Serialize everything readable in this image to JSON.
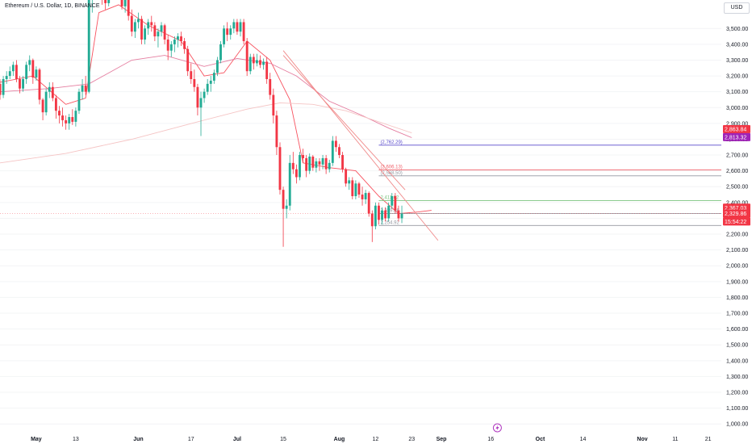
{
  "header": {
    "title": "Ethereum / U.S. Dollar, 1D, BINANCE",
    "currency_button": "USD"
  },
  "colors": {
    "up": "#22ab94",
    "down": "#f23645",
    "sma_fast": "#f7525f",
    "sma_mid": "#e57ea0",
    "sma_slow": "#f5c4c4",
    "trend": "#f08a8a",
    "level_purple": "#5b4ccc",
    "level_red": "#f0606a",
    "level_green": "#7bc47f",
    "level_gray": "#9598a1",
    "axis_text": "#131722",
    "badge_purple": "#a023b7"
  },
  "chart_data": {
    "type": "candlestick",
    "symbol": "Ethereum / U.S. Dollar",
    "interval": "1D",
    "exchange": "BINANCE",
    "y_axis": {
      "range": [
        950,
        3680
      ],
      "ticks": [
        1000,
        1100,
        1200,
        1300,
        1400,
        1500,
        1600,
        1700,
        1800,
        1900,
        2000,
        2100,
        2200,
        2300,
        2400,
        2500,
        2600,
        2700,
        2800,
        2900,
        3000,
        3100,
        3200,
        3300,
        3400,
        3500
      ],
      "tick_labels": [
        "1,000.00",
        "1,100.00",
        "1,200.00",
        "1,300.00",
        "1,400.00",
        "1,500.00",
        "1,600.00",
        "1,700.00",
        "1,800.00",
        "1,900.00",
        "2,000.00",
        "2,100.00",
        "2,200.00",
        "2,300.00",
        "2,400.00",
        "2,500.00",
        "2,600.00",
        "2,700.00",
        "2,800.00",
        "2,900.00",
        "3,000.00",
        "3,100.00",
        "3,200.00",
        "3,300.00",
        "3,400.00",
        "3,500.00"
      ]
    },
    "x_axis": {
      "range": [
        "2024-04-20",
        "2024-11-25"
      ],
      "tick_labels": [
        {
          "date": "2024-05-01",
          "label": "May",
          "major": true
        },
        {
          "date": "2024-05-13",
          "label": "13",
          "major": false
        },
        {
          "date": "2024-06-01",
          "label": "Jun",
          "major": true
        },
        {
          "date": "2024-06-17",
          "label": "17",
          "major": false
        },
        {
          "date": "2024-07-01",
          "label": "Jul",
          "major": true
        },
        {
          "date": "2024-07-15",
          "label": "15",
          "major": false
        },
        {
          "date": "2024-08-01",
          "label": "Aug",
          "major": true
        },
        {
          "date": "2024-08-12",
          "label": "12",
          "major": false
        },
        {
          "date": "2024-08-23",
          "label": "23",
          "major": false
        },
        {
          "date": "2024-09-01",
          "label": "Sep",
          "major": true
        },
        {
          "date": "2024-09-16",
          "label": "16",
          "major": false
        },
        {
          "date": "2024-10-01",
          "label": "Oct",
          "major": true
        },
        {
          "date": "2024-10-14",
          "label": "14",
          "major": false
        },
        {
          "date": "2024-11-01",
          "label": "Nov",
          "major": true
        },
        {
          "date": "2024-11-11",
          "label": "11",
          "major": false
        },
        {
          "date": "2024-11-21",
          "label": "21",
          "major": false
        }
      ]
    },
    "first_date": "2024-04-20",
    "candles": [
      [
        3150,
        3180,
        3050,
        3080
      ],
      [
        3080,
        3200,
        3060,
        3180
      ],
      [
        3180,
        3230,
        3150,
        3200
      ],
      [
        3200,
        3260,
        3180,
        3230
      ],
      [
        3230,
        3290,
        3200,
        3270
      ],
      [
        3270,
        3300,
        3160,
        3180
      ],
      [
        3180,
        3200,
        3090,
        3120
      ],
      [
        3120,
        3200,
        3100,
        3180
      ],
      [
        3180,
        3290,
        3150,
        3270
      ],
      [
        3270,
        3330,
        3230,
        3300
      ],
      [
        3300,
        3310,
        3150,
        3190
      ],
      [
        3190,
        3260,
        3170,
        3240
      ],
      [
        3240,
        3250,
        3020,
        3050
      ],
      [
        3050,
        3060,
        2920,
        2970
      ],
      [
        2970,
        3120,
        2950,
        3100
      ],
      [
        3100,
        3160,
        3060,
        3130
      ],
      [
        3130,
        3160,
        3040,
        3060
      ],
      [
        3060,
        3080,
        2930,
        2980
      ],
      [
        2980,
        3010,
        2900,
        2950
      ],
      [
        2950,
        3000,
        2880,
        2920
      ],
      [
        2920,
        2950,
        2860,
        2900
      ],
      [
        2900,
        2960,
        2860,
        2940
      ],
      [
        2940,
        2990,
        2890,
        2910
      ],
      [
        2910,
        3000,
        2880,
        2980
      ],
      [
        2980,
        3120,
        2960,
        3100
      ],
      [
        3100,
        3180,
        3050,
        3140
      ],
      [
        3140,
        3200,
        3080,
        3100
      ],
      [
        3100,
        3720,
        3090,
        3680
      ],
      [
        3680,
        3800,
        3600,
        3750
      ],
      [
        3750,
        3820,
        3700,
        3780
      ],
      [
        3780,
        3800,
        3690,
        3740
      ],
      [
        3740,
        3760,
        3650,
        3700
      ],
      [
        3700,
        3750,
        3620,
        3660
      ],
      [
        3660,
        3740,
        3640,
        3720
      ],
      [
        3720,
        3800,
        3690,
        3780
      ],
      [
        3780,
        3810,
        3700,
        3740
      ],
      [
        3740,
        3770,
        3680,
        3710
      ],
      [
        3710,
        3750,
        3620,
        3640
      ],
      [
        3640,
        3700,
        3600,
        3680
      ],
      [
        3680,
        3700,
        3550,
        3580
      ],
      [
        3580,
        3620,
        3450,
        3480
      ],
      [
        3480,
        3560,
        3440,
        3540
      ],
      [
        3540,
        3600,
        3500,
        3560
      ],
      [
        3560,
        3580,
        3400,
        3430
      ],
      [
        3430,
        3520,
        3400,
        3500
      ],
      [
        3500,
        3560,
        3460,
        3540
      ],
      [
        3540,
        3580,
        3480,
        3520
      ],
      [
        3520,
        3540,
        3420,
        3450
      ],
      [
        3450,
        3500,
        3380,
        3480
      ],
      [
        3480,
        3540,
        3450,
        3520
      ],
      [
        3520,
        3530,
        3400,
        3430
      ],
      [
        3430,
        3460,
        3300,
        3360
      ],
      [
        3360,
        3420,
        3320,
        3400
      ],
      [
        3400,
        3450,
        3350,
        3430
      ],
      [
        3430,
        3470,
        3380,
        3450
      ],
      [
        3450,
        3480,
        3390,
        3420
      ],
      [
        3420,
        3440,
        3340,
        3370
      ],
      [
        3370,
        3390,
        3200,
        3230
      ],
      [
        3230,
        3280,
        3150,
        3180
      ],
      [
        3180,
        3240,
        3100,
        3130
      ],
      [
        3130,
        3150,
        2950,
        3000
      ],
      [
        3000,
        3100,
        2820,
        3060
      ],
      [
        3060,
        3120,
        3030,
        3100
      ],
      [
        3100,
        3180,
        3080,
        3150
      ],
      [
        3150,
        3200,
        3100,
        3170
      ],
      [
        3170,
        3240,
        3150,
        3220
      ],
      [
        3220,
        3320,
        3200,
        3300
      ],
      [
        3300,
        3420,
        3280,
        3400
      ],
      [
        3400,
        3520,
        3380,
        3500
      ],
      [
        3500,
        3540,
        3420,
        3460
      ],
      [
        3460,
        3520,
        3430,
        3500
      ],
      [
        3500,
        3560,
        3470,
        3540
      ],
      [
        3540,
        3560,
        3460,
        3480
      ],
      [
        3480,
        3560,
        3450,
        3540
      ],
      [
        3540,
        3560,
        3400,
        3420
      ],
      [
        3420,
        3440,
        3200,
        3230
      ],
      [
        3230,
        3340,
        3210,
        3320
      ],
      [
        3320,
        3340,
        3240,
        3280
      ],
      [
        3280,
        3340,
        3260,
        3300
      ],
      [
        3300,
        3330,
        3250,
        3270
      ],
      [
        3270,
        3310,
        3240,
        3290
      ],
      [
        3290,
        3320,
        3150,
        3180
      ],
      [
        3180,
        3220,
        3050,
        3080
      ],
      [
        3080,
        3120,
        2900,
        2950
      ],
      [
        2950,
        2980,
        2700,
        2750
      ],
      [
        2750,
        2780,
        2450,
        2480
      ],
      [
        2480,
        2500,
        2120,
        2360
      ],
      [
        2360,
        2420,
        2300,
        2380
      ],
      [
        2380,
        2700,
        2350,
        2650
      ],
      [
        2650,
        2720,
        2580,
        2610
      ],
      [
        2610,
        2640,
        2520,
        2560
      ],
      [
        2560,
        2720,
        2540,
        2700
      ],
      [
        2700,
        2740,
        2650,
        2680
      ],
      [
        2680,
        2700,
        2560,
        2600
      ],
      [
        2600,
        2710,
        2580,
        2690
      ],
      [
        2690,
        2700,
        2600,
        2620
      ],
      [
        2620,
        2680,
        2590,
        2660
      ],
      [
        2660,
        2680,
        2600,
        2640
      ],
      [
        2640,
        2700,
        2610,
        2680
      ],
      [
        2680,
        2700,
        2580,
        2610
      ],
      [
        2610,
        2670,
        2590,
        2650
      ],
      [
        2650,
        2820,
        2630,
        2790
      ],
      [
        2790,
        2820,
        2720,
        2750
      ],
      [
        2750,
        2770,
        2680,
        2700
      ],
      [
        2700,
        2720,
        2590,
        2610
      ],
      [
        2610,
        2620,
        2500,
        2520
      ],
      [
        2520,
        2560,
        2480,
        2540
      ],
      [
        2540,
        2560,
        2420,
        2440
      ],
      [
        2440,
        2540,
        2420,
        2520
      ],
      [
        2520,
        2530,
        2430,
        2450
      ],
      [
        2450,
        2500,
        2380,
        2420
      ],
      [
        2420,
        2480,
        2390,
        2460
      ],
      [
        2460,
        2470,
        2310,
        2330
      ],
      [
        2330,
        2350,
        2150,
        2250
      ],
      [
        2250,
        2400,
        2230,
        2380
      ],
      [
        2380,
        2400,
        2260,
        2290
      ],
      [
        2290,
        2370,
        2260,
        2350
      ],
      [
        2350,
        2370,
        2280,
        2300
      ],
      [
        2300,
        2400,
        2280,
        2380
      ],
      [
        2380,
        2460,
        2360,
        2440
      ],
      [
        2440,
        2460,
        2330,
        2350
      ],
      [
        2350,
        2380,
        2280,
        2300
      ],
      [
        2300,
        2380,
        2270,
        2330
      ]
    ],
    "moving_averages": [
      {
        "color_key": "sma_fast",
        "points": [
          [
            0,
            3160
          ],
          [
            10,
            3200
          ],
          [
            20,
            3020
          ],
          [
            26,
            3060
          ],
          [
            30,
            3600
          ],
          [
            36,
            3650
          ],
          [
            45,
            3520
          ],
          [
            55,
            3420
          ],
          [
            62,
            3200
          ],
          [
            68,
            3220
          ],
          [
            75,
            3420
          ],
          [
            82,
            3300
          ],
          [
            88,
            3050
          ],
          [
            92,
            2650
          ],
          [
            100,
            2620
          ],
          [
            108,
            2600
          ],
          [
            115,
            2440
          ],
          [
            121,
            2330
          ],
          [
            127,
            2340
          ],
          [
            131,
            2350
          ]
        ]
      },
      {
        "color_key": "sma_mid",
        "points": [
          [
            0,
            3100
          ],
          [
            15,
            3120
          ],
          [
            27,
            3150
          ],
          [
            40,
            3300
          ],
          [
            50,
            3330
          ],
          [
            62,
            3260
          ],
          [
            72,
            3310
          ],
          [
            82,
            3280
          ],
          [
            90,
            3200
          ],
          [
            100,
            3040
          ],
          [
            110,
            2950
          ],
          [
            118,
            2870
          ],
          [
            125,
            2810
          ]
        ]
      },
      {
        "color_key": "sma_slow",
        "points": [
          [
            0,
            2650
          ],
          [
            20,
            2710
          ],
          [
            40,
            2800
          ],
          [
            60,
            2910
          ],
          [
            75,
            2990
          ],
          [
            85,
            3030
          ],
          [
            95,
            3020
          ],
          [
            105,
            2980
          ],
          [
            115,
            2910
          ],
          [
            125,
            2840
          ]
        ]
      }
    ],
    "trendlines": [
      {
        "color_key": "trend",
        "points": [
          [
            86,
            3360
          ],
          [
            133,
            2160
          ]
        ]
      },
      {
        "color_key": "trend",
        "points": [
          [
            86,
            3330
          ],
          [
            123,
            2480
          ]
        ]
      }
    ],
    "horizontal_levels": [
      {
        "value": 2762.29,
        "label": "(2,762.29)",
        "color_key": "level_purple",
        "start": 115
      },
      {
        "value": 2606.13,
        "label": "(2,606.13)",
        "color_key": "level_red",
        "start": 115
      },
      {
        "value": 2568.5,
        "label": "(2,568.50)",
        "color_key": "level_gray",
        "start": 115
      },
      {
        "value": 2411.62,
        "label": "2,411.62",
        "color_key": "level_green",
        "start": 115
      },
      {
        "value": 2329.86,
        "label": "2,329.86",
        "color_key": "level_gray",
        "start": 115
      },
      {
        "value": 2254.92,
        "label": "2,254.92",
        "color_key": "level_gray",
        "start": 115
      }
    ],
    "current_price": 2329.86,
    "price_badges": [
      {
        "value": 2863.84,
        "text": "2,863.84",
        "color_key": "down"
      },
      {
        "value": 2813.32,
        "text": "2,813.32",
        "color_key": "badge_purple"
      },
      {
        "value": 2367.03,
        "text": "2,367.03",
        "color_key": "down"
      },
      {
        "value": 2329.86,
        "text": "2,329.86",
        "color_key": "down"
      },
      {
        "value": 2280.0,
        "text": "15:54:22",
        "color_key": "down"
      }
    ],
    "event_marker": {
      "date": "2024-09-18",
      "icon": "lightning-icon"
    }
  }
}
